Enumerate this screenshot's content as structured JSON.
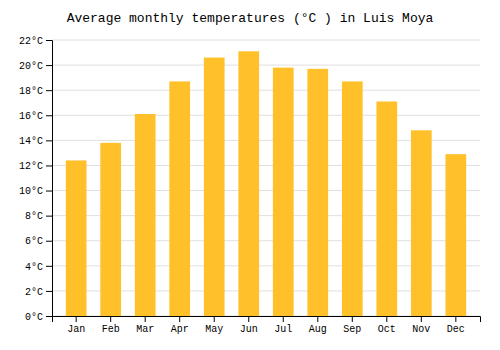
{
  "chart_data": {
    "type": "bar",
    "title": "Average monthly temperatures (°C ) in Luis Moya",
    "categories": [
      "Jan",
      "Feb",
      "Mar",
      "Apr",
      "May",
      "Jun",
      "Jul",
      "Aug",
      "Sep",
      "Oct",
      "Nov",
      "Dec"
    ],
    "values": [
      12.4,
      13.8,
      16.1,
      18.7,
      20.6,
      21.1,
      19.8,
      19.7,
      18.7,
      17.1,
      14.8,
      12.9
    ],
    "color": "#FFC02A",
    "ylim": [
      0,
      22
    ],
    "yticks": [
      {
        "value": 0,
        "label": "0°C"
      },
      {
        "value": 2,
        "label": "2°C"
      },
      {
        "value": 4,
        "label": "4°C"
      },
      {
        "value": 6,
        "label": "6°C"
      },
      {
        "value": 8,
        "label": "8°C"
      },
      {
        "value": 10,
        "label": "10°C"
      },
      {
        "value": 12,
        "label": "12°C"
      },
      {
        "value": 14,
        "label": "14°C"
      },
      {
        "value": 16,
        "label": "16°C"
      },
      {
        "value": 18,
        "label": "18°C"
      },
      {
        "value": 20,
        "label": "20°C"
      },
      {
        "value": 22,
        "label": "22°C"
      }
    ],
    "grid": true
  }
}
